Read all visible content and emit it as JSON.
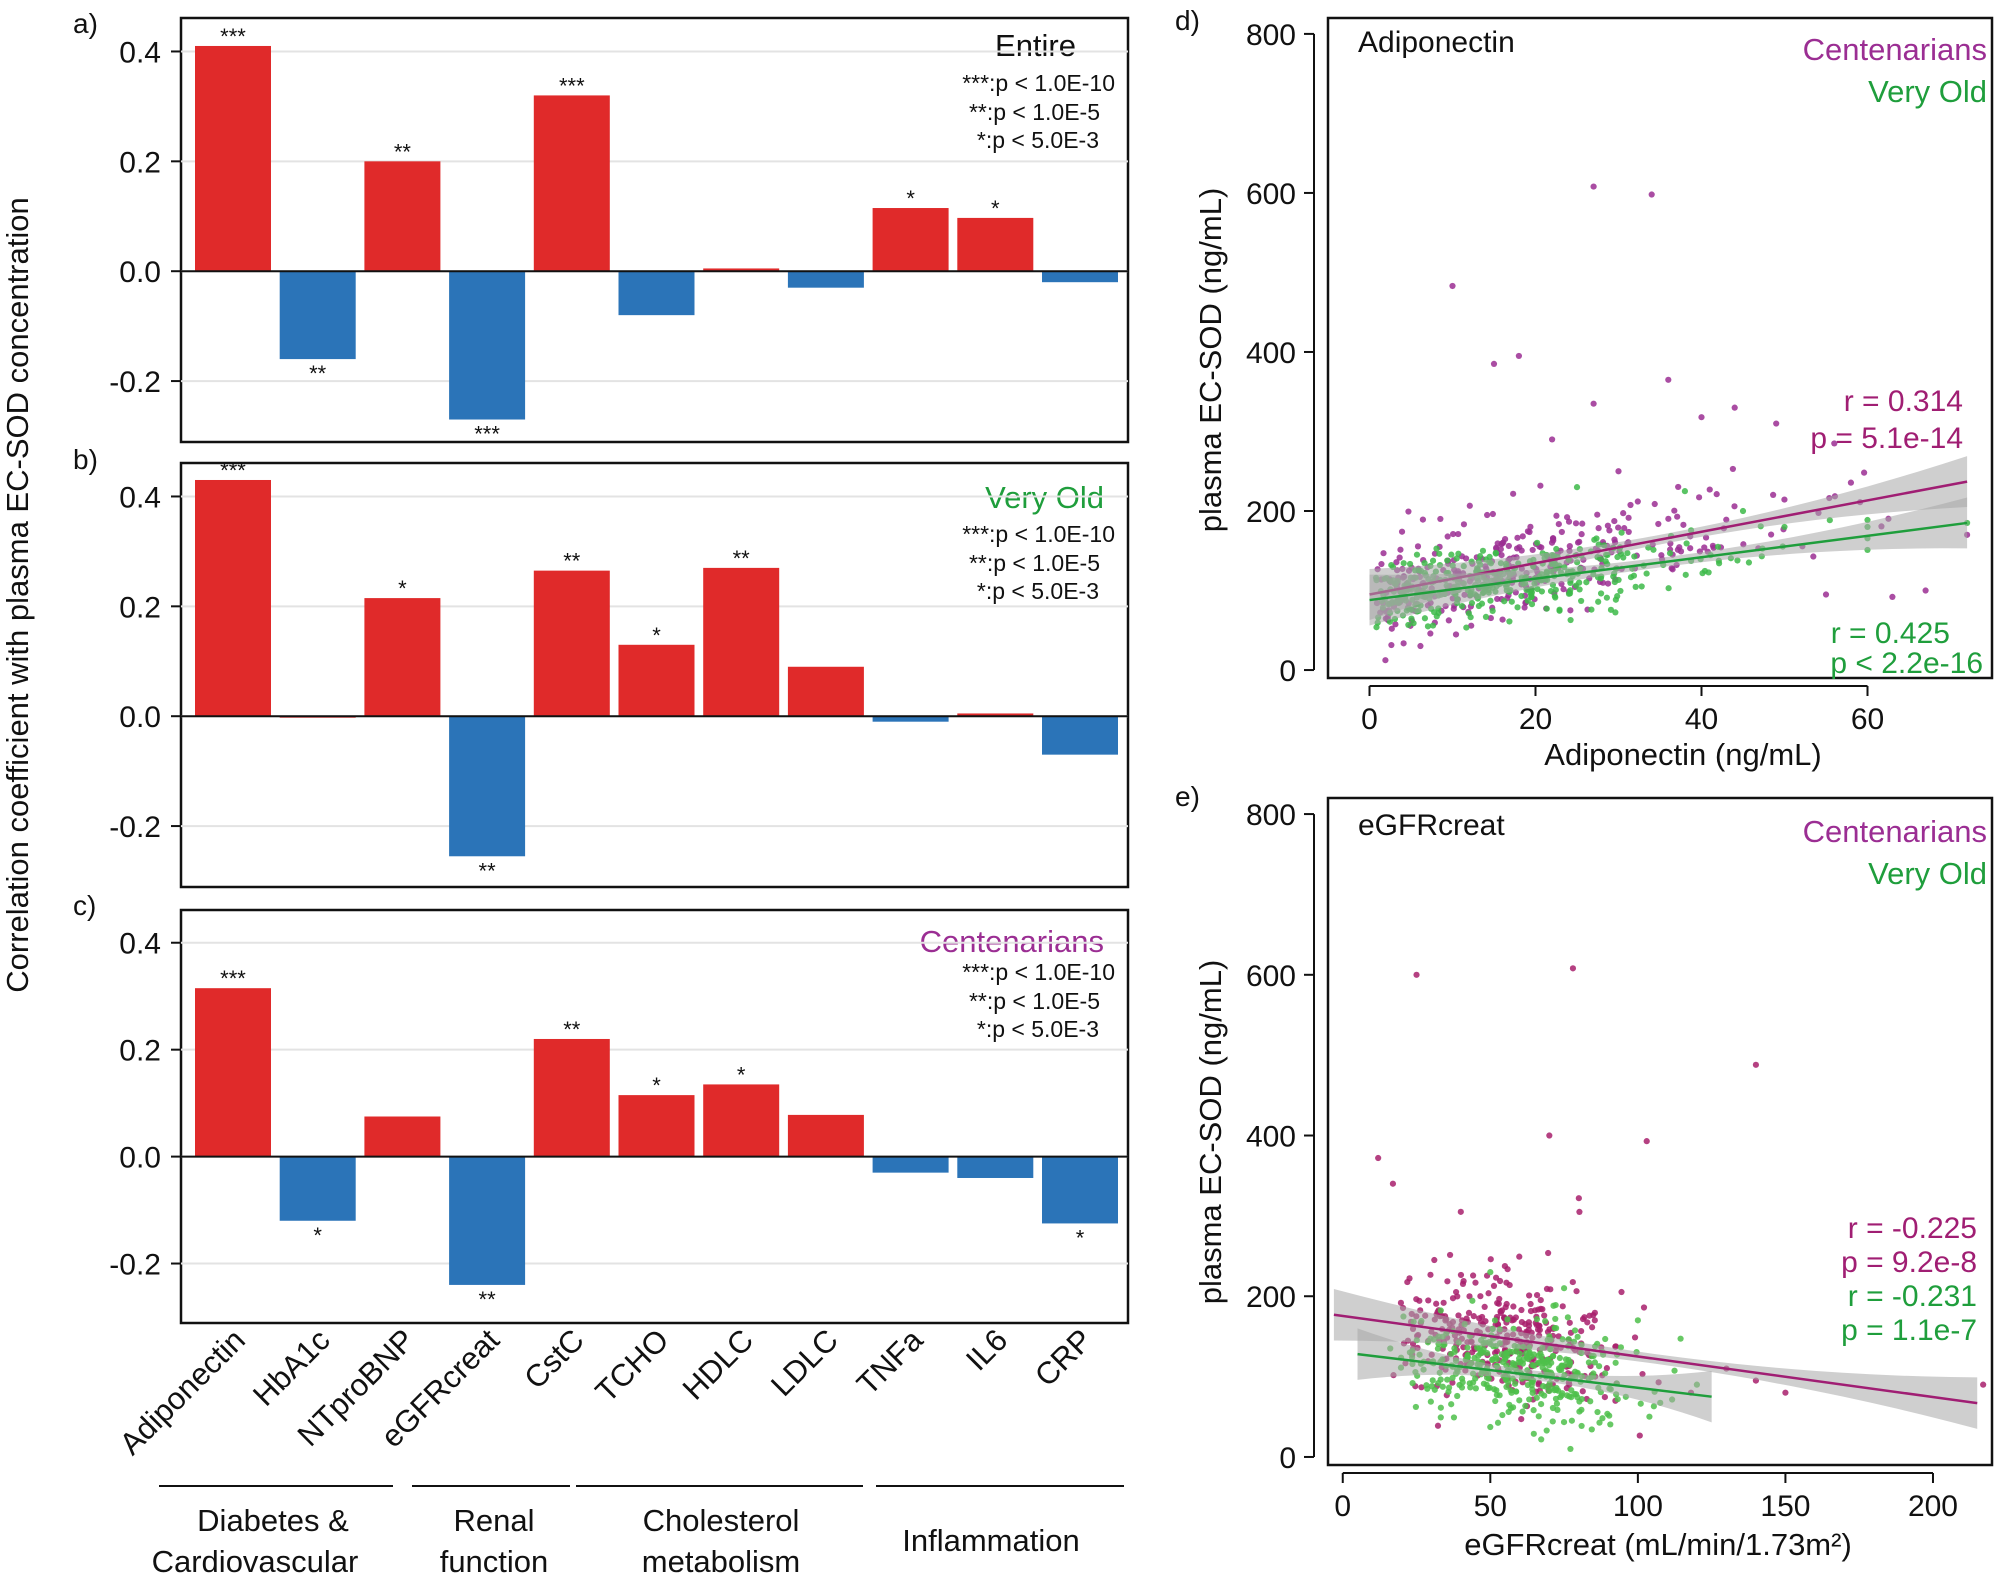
{
  "figure": {
    "y_axis_label": "Correlation coefficient with plasma EC-SOD concentration",
    "sig_legend": [
      "***:p < 1.0E-10",
      "**:p < 1.0E-5",
      "*:p < 5.0E-3"
    ],
    "colors": {
      "positive": "#e02a2a",
      "negative": "#2b74b8",
      "centenarians": "#9b2e93",
      "very_old": "#1f9e3c",
      "centenarians_line": "#a01e73",
      "band": "#a8a8a8"
    },
    "groups": [
      {
        "label_line1": "Diabetes &",
        "label_line2": "Cardiovascular"
      },
      {
        "label_line1": "Renal",
        "label_line2": "function"
      },
      {
        "label_line1": "Cholesterol",
        "label_line2": "metabolism"
      },
      {
        "label_line1": "Inflammation",
        "label_line2": ""
      }
    ]
  },
  "chart_data": [
    {
      "id": "a",
      "panel_label": "a)",
      "type": "bar",
      "title": "Entire",
      "title_color": "#111111",
      "categories": [
        "Adiponectin",
        "HbA1c",
        "NTproBNP",
        "eGFRcreat",
        "CstC",
        "TCHO",
        "HDLC",
        "LDLC",
        "TNFa",
        "IL6",
        "CRP"
      ],
      "values": [
        0.41,
        -0.16,
        0.2,
        -0.27,
        0.32,
        -0.08,
        0.005,
        -0.03,
        0.115,
        0.097,
        -0.02
      ],
      "significance": [
        "***",
        "**",
        "**",
        "***",
        "***",
        "",
        "",
        "",
        "*",
        "*",
        ""
      ],
      "ylim": [
        -0.3,
        0.45
      ],
      "yticks": [
        -0.2,
        0.0,
        0.2,
        0.4
      ],
      "ytick_labels": [
        "-0.2",
        "0.0",
        "0.2",
        "0.4"
      ]
    },
    {
      "id": "b",
      "panel_label": "b)",
      "type": "bar",
      "title": "Very Old",
      "title_color": "#1f9e3c",
      "categories": [
        "Adiponectin",
        "HbA1c",
        "NTproBNP",
        "eGFRcreat",
        "CstC",
        "TCHO",
        "HDLC",
        "LDLC",
        "TNFa",
        "IL6",
        "CRP"
      ],
      "values": [
        0.43,
        0.0,
        0.215,
        -0.255,
        0.265,
        0.13,
        0.27,
        0.09,
        -0.01,
        0.005,
        -0.07
      ],
      "significance": [
        "***",
        "",
        "*",
        "**",
        "**",
        "*",
        "**",
        "",
        "",
        "",
        ""
      ],
      "ylim": [
        -0.3,
        0.45
      ],
      "yticks": [
        -0.2,
        0.0,
        0.2,
        0.4
      ],
      "ytick_labels": [
        "-0.2",
        "0.0",
        "0.2",
        "0.4"
      ]
    },
    {
      "id": "c",
      "panel_label": "c)",
      "type": "bar",
      "title": "Centenarians",
      "title_color": "#9b2e93",
      "categories": [
        "Adiponectin",
        "HbA1c",
        "NTproBNP",
        "eGFRcreat",
        "CstC",
        "TCHO",
        "HDLC",
        "LDLC",
        "TNFa",
        "IL6",
        "CRP"
      ],
      "values": [
        0.315,
        -0.12,
        0.075,
        -0.24,
        0.22,
        0.115,
        0.135,
        0.078,
        -0.03,
        -0.04,
        -0.125
      ],
      "significance": [
        "***",
        "*",
        "",
        "**",
        "**",
        "*",
        "*",
        "",
        "",
        "",
        "*"
      ],
      "ylim": [
        -0.3,
        0.45
      ],
      "yticks": [
        -0.2,
        0.0,
        0.2,
        0.4
      ],
      "ytick_labels": [
        "-0.2",
        "0.0",
        "0.2",
        "0.4"
      ]
    },
    {
      "id": "d",
      "panel_label": "d)",
      "type": "scatter",
      "title": "Adiponectin",
      "xlabel": "Adiponectin (ng/mL)",
      "ylabel": "plasma EC-SOD (ng/mL)",
      "xlim": [
        -5,
        75
      ],
      "ylim": [
        -10,
        820
      ],
      "xticks": [
        0,
        20,
        40,
        60
      ],
      "xtick_labels": [
        "0",
        "20",
        "40",
        "60"
      ],
      "yticks": [
        0,
        200,
        400,
        600,
        800
      ],
      "ytick_labels": [
        "0",
        "200",
        "400",
        "600",
        "800"
      ],
      "legend": [
        "Centenarians",
        "Very Old"
      ],
      "series": [
        {
          "name": "Centenarians",
          "color": "#9b2e93",
          "stat_color": "#a01e73",
          "r_text": "r = 0.314",
          "p_text": "p = 5.1e-14",
          "fit": {
            "x": [
              0,
              72
            ],
            "y": [
              95,
              237
            ]
          },
          "mean_slope": 2.0,
          "mean_intercept": 97,
          "spread": 32,
          "xmax_data": 72,
          "n": 340,
          "outliers": [
            [
              27,
              608
            ],
            [
              34,
              598
            ],
            [
              10,
              483
            ],
            [
              18,
              395
            ],
            [
              15,
              385
            ],
            [
              36,
              365
            ],
            [
              27,
              335
            ],
            [
              44,
              330
            ],
            [
              49,
              310
            ],
            [
              40,
              318
            ],
            [
              56,
              285
            ],
            [
              55,
              95
            ],
            [
              63,
              92
            ],
            [
              67,
              100
            ],
            [
              72,
              170
            ],
            [
              30,
              250
            ],
            [
              22,
              290
            ]
          ]
        },
        {
          "name": "Very Old",
          "color": "#3dba49",
          "stat_color": "#1f9e3c",
          "r_text": "r = 0.425",
          "p_text": "p < 2.2e-16",
          "fit": {
            "x": [
              0,
              72
            ],
            "y": [
              88,
              185
            ]
          },
          "mean_slope": 1.35,
          "mean_intercept": 88,
          "spread": 22,
          "xmax_data": 60,
          "n": 380,
          "outliers": [
            [
              25,
              230
            ],
            [
              38,
              225
            ],
            [
              45,
              200
            ],
            [
              50,
              180
            ],
            [
              60,
              180
            ],
            [
              72,
              185
            ]
          ]
        }
      ]
    },
    {
      "id": "e",
      "panel_label": "e)",
      "type": "scatter",
      "title": "eGFRcreat",
      "xlabel": "eGFRcreat (mL/min/1.73m²)",
      "ylabel": "plasma EC-SOD (ng/mL)",
      "xlim": [
        -5,
        220
      ],
      "ylim": [
        -10,
        820
      ],
      "xticks": [
        0,
        50,
        100,
        150,
        200
      ],
      "xtick_labels": [
        "0",
        "50",
        "100",
        "150",
        "200"
      ],
      "yticks": [
        0,
        200,
        400,
        600,
        800
      ],
      "ytick_labels": [
        "0",
        "200",
        "400",
        "600",
        "800"
      ],
      "legend": [
        "Centenarians",
        "Very Old"
      ],
      "series": [
        {
          "name": "Centenarians",
          "color": "#a8206c",
          "stat_color": "#a01e73",
          "r_text": "r = -0.225",
          "p_text": "p = 9.2e-8",
          "fit": {
            "x": [
              -3,
              215
            ],
            "y": [
              177,
              67
            ]
          },
          "mean_slope": -0.5,
          "mean_intercept": 175,
          "spread": 40,
          "xmax_data": 110,
          "n": 330,
          "outliers": [
            [
              25,
              600
            ],
            [
              78,
              608
            ],
            [
              140,
              488
            ],
            [
              70,
              400
            ],
            [
              103,
              393
            ],
            [
              12,
              372
            ],
            [
              17,
              340
            ],
            [
              80,
              322
            ],
            [
              40,
              305
            ],
            [
              140,
              95
            ],
            [
              150,
              80
            ],
            [
              217,
              90
            ],
            [
              130,
              110
            ],
            [
              118,
              80
            ]
          ]
        },
        {
          "name": "Very Old",
          "color": "#4ec04a",
          "stat_color": "#1f9e3c",
          "r_text": "r = -0.231",
          "p_text": "p = 1.1e-7",
          "fit": {
            "x": [
              5,
              125
            ],
            "y": [
              128,
              75
            ]
          },
          "mean_slope": -0.45,
          "mean_intercept": 130,
          "spread": 32,
          "xmax_data": 122,
          "n": 370,
          "outliers": [
            [
              50,
              230
            ],
            [
              75,
              210
            ],
            [
              100,
              170
            ],
            [
              120,
              90
            ]
          ]
        }
      ]
    }
  ]
}
